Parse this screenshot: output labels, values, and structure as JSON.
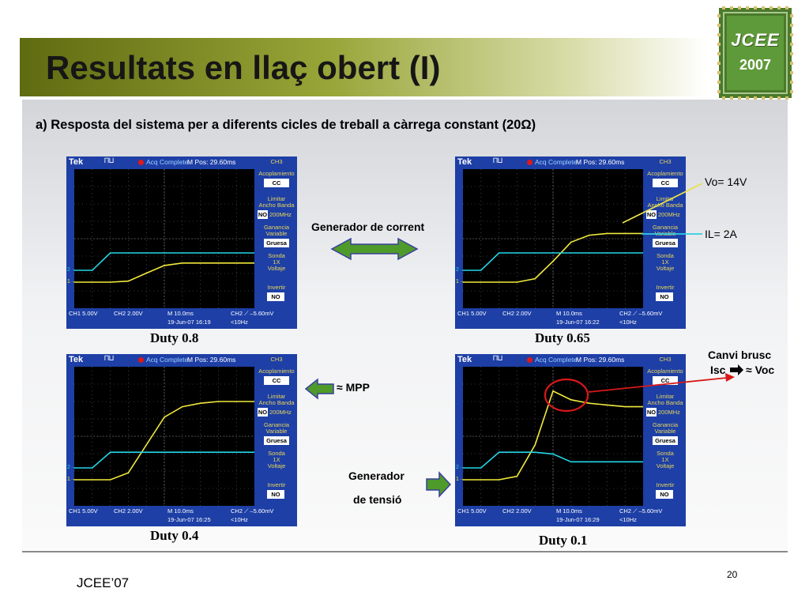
{
  "slide": {
    "title": "Resultats en llaç obert (I)",
    "subtitle": "a) Resposta del sistema per a diferents cicles de treball a càrrega constant (20Ω)",
    "logo": {
      "line1": "JCEE",
      "line2": "2007"
    },
    "footer_left": "JCEE’07",
    "page_number": "20"
  },
  "annotations": {
    "generador_corrent": "Generador de corrent",
    "mpp": "≈ MPP",
    "generador_tensio_1": "Generador",
    "generador_tensio_2": "de tensió",
    "vo": "Vo= 14V",
    "il": "IL= 2A",
    "canvi_1": "Canvi brusc",
    "canvi_2": "Isc",
    "canvi_3": "≈ Voc"
  },
  "scope_common": {
    "brand": "Tek",
    "trigger_symbol": "⊓⊔",
    "acq_status": "Acq Complete",
    "menu": {
      "title": "CH3",
      "acoplamiento": "Acoplamiento",
      "acoplamiento_val": "CC",
      "limitar_1": "Limitar",
      "limitar_2": "Ancho Banda",
      "limitar_no": "NO",
      "limitar_val": "200MHz",
      "ganancia_1": "Ganancia",
      "ganancia_2": "Variable",
      "ganancia_val": "Gruesa",
      "sonda_1": "Sonda",
      "sonda_2": "1X",
      "sonda_3": "Voltaje",
      "invertir": "Invertir",
      "invertir_val": "NO"
    },
    "ch1_setting": "CH1  5.00V",
    "ch2_setting": "CH2  2.00V",
    "timebase": "M 10.0ms",
    "trigger_setting": "CH2 ⟋ –5.60mV",
    "freq": "<10Hz",
    "marker_1": "1→",
    "marker_2": "2→"
  },
  "chart_data": [
    {
      "type": "line",
      "label": "Duty 0.8",
      "m_pos": "M Pos: 29.60ms",
      "datetime": "19-Jun-07 16:19",
      "x": [
        0,
        1,
        2,
        3,
        4,
        5,
        6,
        7,
        8,
        9,
        10
      ],
      "xlabel": "M 10.0ms",
      "series": [
        {
          "name": "CH1",
          "unit": "V",
          "values": [
            0,
            0,
            0,
            0.3,
            2.6,
            4.8,
            5.5,
            5.5,
            5.5,
            5.5,
            5.5
          ]
        },
        {
          "name": "CH2",
          "unit": "A",
          "values": [
            0,
            0,
            2.0,
            2.0,
            2.0,
            2.0,
            2.0,
            2.0,
            2.0,
            2.0,
            2.0
          ]
        }
      ]
    },
    {
      "type": "line",
      "label": "Duty 0.65",
      "m_pos": "M Pos: 29.60ms",
      "datetime": "19-Jun-07 16:22",
      "x": [
        0,
        1,
        2,
        3,
        4,
        5,
        6,
        7,
        8,
        9,
        10
      ],
      "xlabel": "M 10.0ms",
      "series": [
        {
          "name": "CH1",
          "unit": "V",
          "values": [
            0,
            0,
            0,
            0,
            1.0,
            6.0,
            11.5,
            13.5,
            14.0,
            14.0,
            14.0
          ]
        },
        {
          "name": "CH2",
          "unit": "A",
          "values": [
            0,
            0,
            2.0,
            2.0,
            2.0,
            2.0,
            2.0,
            2.0,
            2.0,
            2.0,
            2.0
          ]
        }
      ]
    },
    {
      "type": "line",
      "label": "Duty 0.4",
      "m_pos": "M Pos: 29.60ms",
      "datetime": "19-Jun-07 16:25",
      "x": [
        0,
        1,
        2,
        3,
        4,
        5,
        6,
        7,
        8,
        9,
        10
      ],
      "xlabel": "M 10.0ms",
      "series": [
        {
          "name": "CH1",
          "unit": "V",
          "values": [
            0,
            0,
            0,
            2.0,
            10.0,
            18.0,
            21.0,
            22.0,
            22.5,
            22.5,
            22.5
          ]
        },
        {
          "name": "CH2",
          "unit": "A",
          "values": [
            0,
            0,
            1.8,
            1.8,
            1.8,
            1.8,
            1.8,
            1.8,
            1.8,
            1.8,
            1.8
          ]
        }
      ]
    },
    {
      "type": "line",
      "label": "Duty 0.1",
      "m_pos": "M Pos: 29.60ms",
      "datetime": "19-Jun-07 16:29",
      "x": [
        0,
        1,
        2,
        3,
        4,
        5,
        6,
        7,
        8,
        9,
        10
      ],
      "xlabel": "M 10.0ms",
      "series": [
        {
          "name": "CH1",
          "unit": "V",
          "values": [
            0,
            0,
            0,
            1.0,
            10.0,
            25.5,
            23.0,
            22.0,
            21.5,
            21.0,
            21.0
          ]
        },
        {
          "name": "CH2",
          "unit": "A",
          "values": [
            0,
            0,
            1.8,
            1.8,
            1.8,
            1.6,
            0.7,
            0.7,
            0.7,
            0.7,
            0.7
          ]
        }
      ]
    }
  ]
}
